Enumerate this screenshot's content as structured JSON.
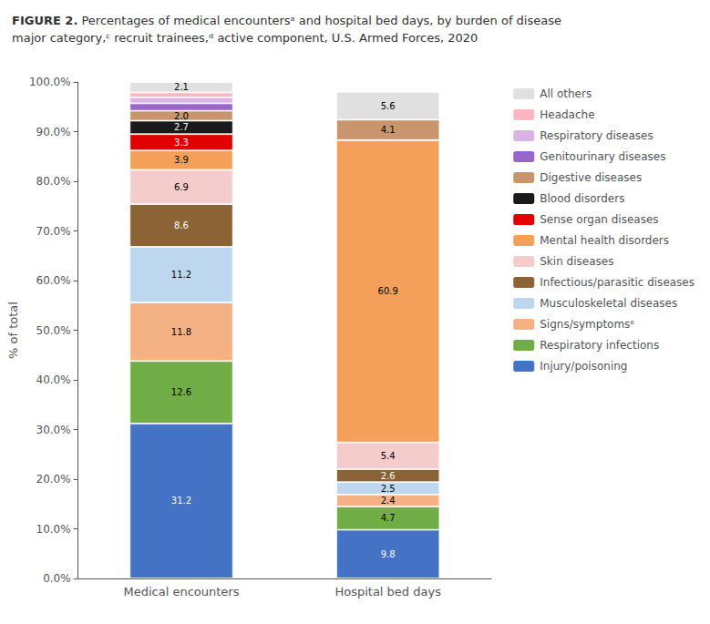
{
  "chart_data": {
    "type": "bar",
    "stacked": true,
    "title": "FIGURE 2.",
    "subtitle": " Percentages of medical encountersᵃ and hospital bed days, by burden of disease\nmajor category,ᶜ recruit trainees,ᵈ active component, U.S. Armed Forces, 2020",
    "categories": [
      "Medical encounters",
      "Hospital bed days"
    ],
    "ylabel": "% of total",
    "ylim": [
      0,
      100
    ],
    "yticks": [
      {
        "value": 0,
        "label": "0.0%"
      },
      {
        "value": 10,
        "label": "10.0%"
      },
      {
        "value": 20,
        "label": "20.0%"
      },
      {
        "value": 30,
        "label": "30.0%"
      },
      {
        "value": 40,
        "label": "40.0%"
      },
      {
        "value": 50,
        "label": "50.0%"
      },
      {
        "value": 60,
        "label": "60.0%"
      },
      {
        "value": 70,
        "label": "70.0%"
      },
      {
        "value": 80,
        "label": "80.0%"
      },
      {
        "value": 90,
        "label": "90.0%"
      },
      {
        "value": 100,
        "label": "100.0%"
      }
    ],
    "grid": false,
    "legend": "right",
    "data_labels": true,
    "series": [
      {
        "name": "Injury/poisoning",
        "color": "#4472C4",
        "values": [
          31.2,
          9.8
        ],
        "value_labels": [
          "31.2",
          "9.8"
        ]
      },
      {
        "name": "Respiratory infections",
        "color": "#70AD47",
        "values": [
          12.6,
          4.7
        ],
        "value_labels": [
          "12.6",
          "4.7"
        ]
      },
      {
        "name": "Signs/symptomsᵉ",
        "color": "#F4B183",
        "values": [
          11.8,
          2.4
        ],
        "value_labels": [
          "11.8",
          "2.4"
        ]
      },
      {
        "name": "Musculoskeletal diseases",
        "color": "#BDD7EE",
        "values": [
          11.2,
          2.5
        ],
        "value_labels": [
          "11.2",
          "2.5"
        ]
      },
      {
        "name": "Infectious/parasitic diseases",
        "color": "#8B6334",
        "values": [
          8.6,
          2.6
        ],
        "value_labels": [
          "8.6",
          "2.6"
        ]
      },
      {
        "name": "Skin diseases",
        "color": "#F4CCCC",
        "values": [
          6.9,
          5.4
        ],
        "value_labels": [
          "6.9",
          "5.4"
        ]
      },
      {
        "name": "Mental health disorders",
        "color": "#F5A05A",
        "values": [
          3.9,
          60.9
        ],
        "value_labels": [
          "3.9",
          "60.9"
        ]
      },
      {
        "name": "Sense organ diseases",
        "color": "#E00000",
        "values": [
          3.3,
          0.0
        ],
        "value_labels": [
          "3.3",
          null
        ]
      },
      {
        "name": "Blood disorders",
        "color": "#1A1A1A",
        "values": [
          2.7,
          0.0
        ],
        "value_labels": [
          "2.7",
          null
        ]
      },
      {
        "name": "Digestive diseases",
        "color": "#C9956C",
        "values": [
          2.0,
          4.1
        ],
        "value_labels": [
          "2.0",
          "4.1"
        ]
      },
      {
        "name": "Genitourinary diseases",
        "color": "#9966CC",
        "values": [
          1.5,
          0.0
        ],
        "value_labels": [
          null,
          null
        ]
      },
      {
        "name": "Respiratory diseases",
        "color": "#D9B3E6",
        "values": [
          1.2,
          0.0
        ],
        "value_labels": [
          null,
          null
        ]
      },
      {
        "name": "Headache",
        "color": "#FFB6C1",
        "values": [
          1.0,
          0.0
        ],
        "value_labels": [
          null,
          null
        ]
      },
      {
        "name": "All others",
        "color": "#E0E0E0",
        "values": [
          2.1,
          5.6
        ],
        "value_labels": [
          "2.1",
          "5.6"
        ]
      }
    ]
  }
}
